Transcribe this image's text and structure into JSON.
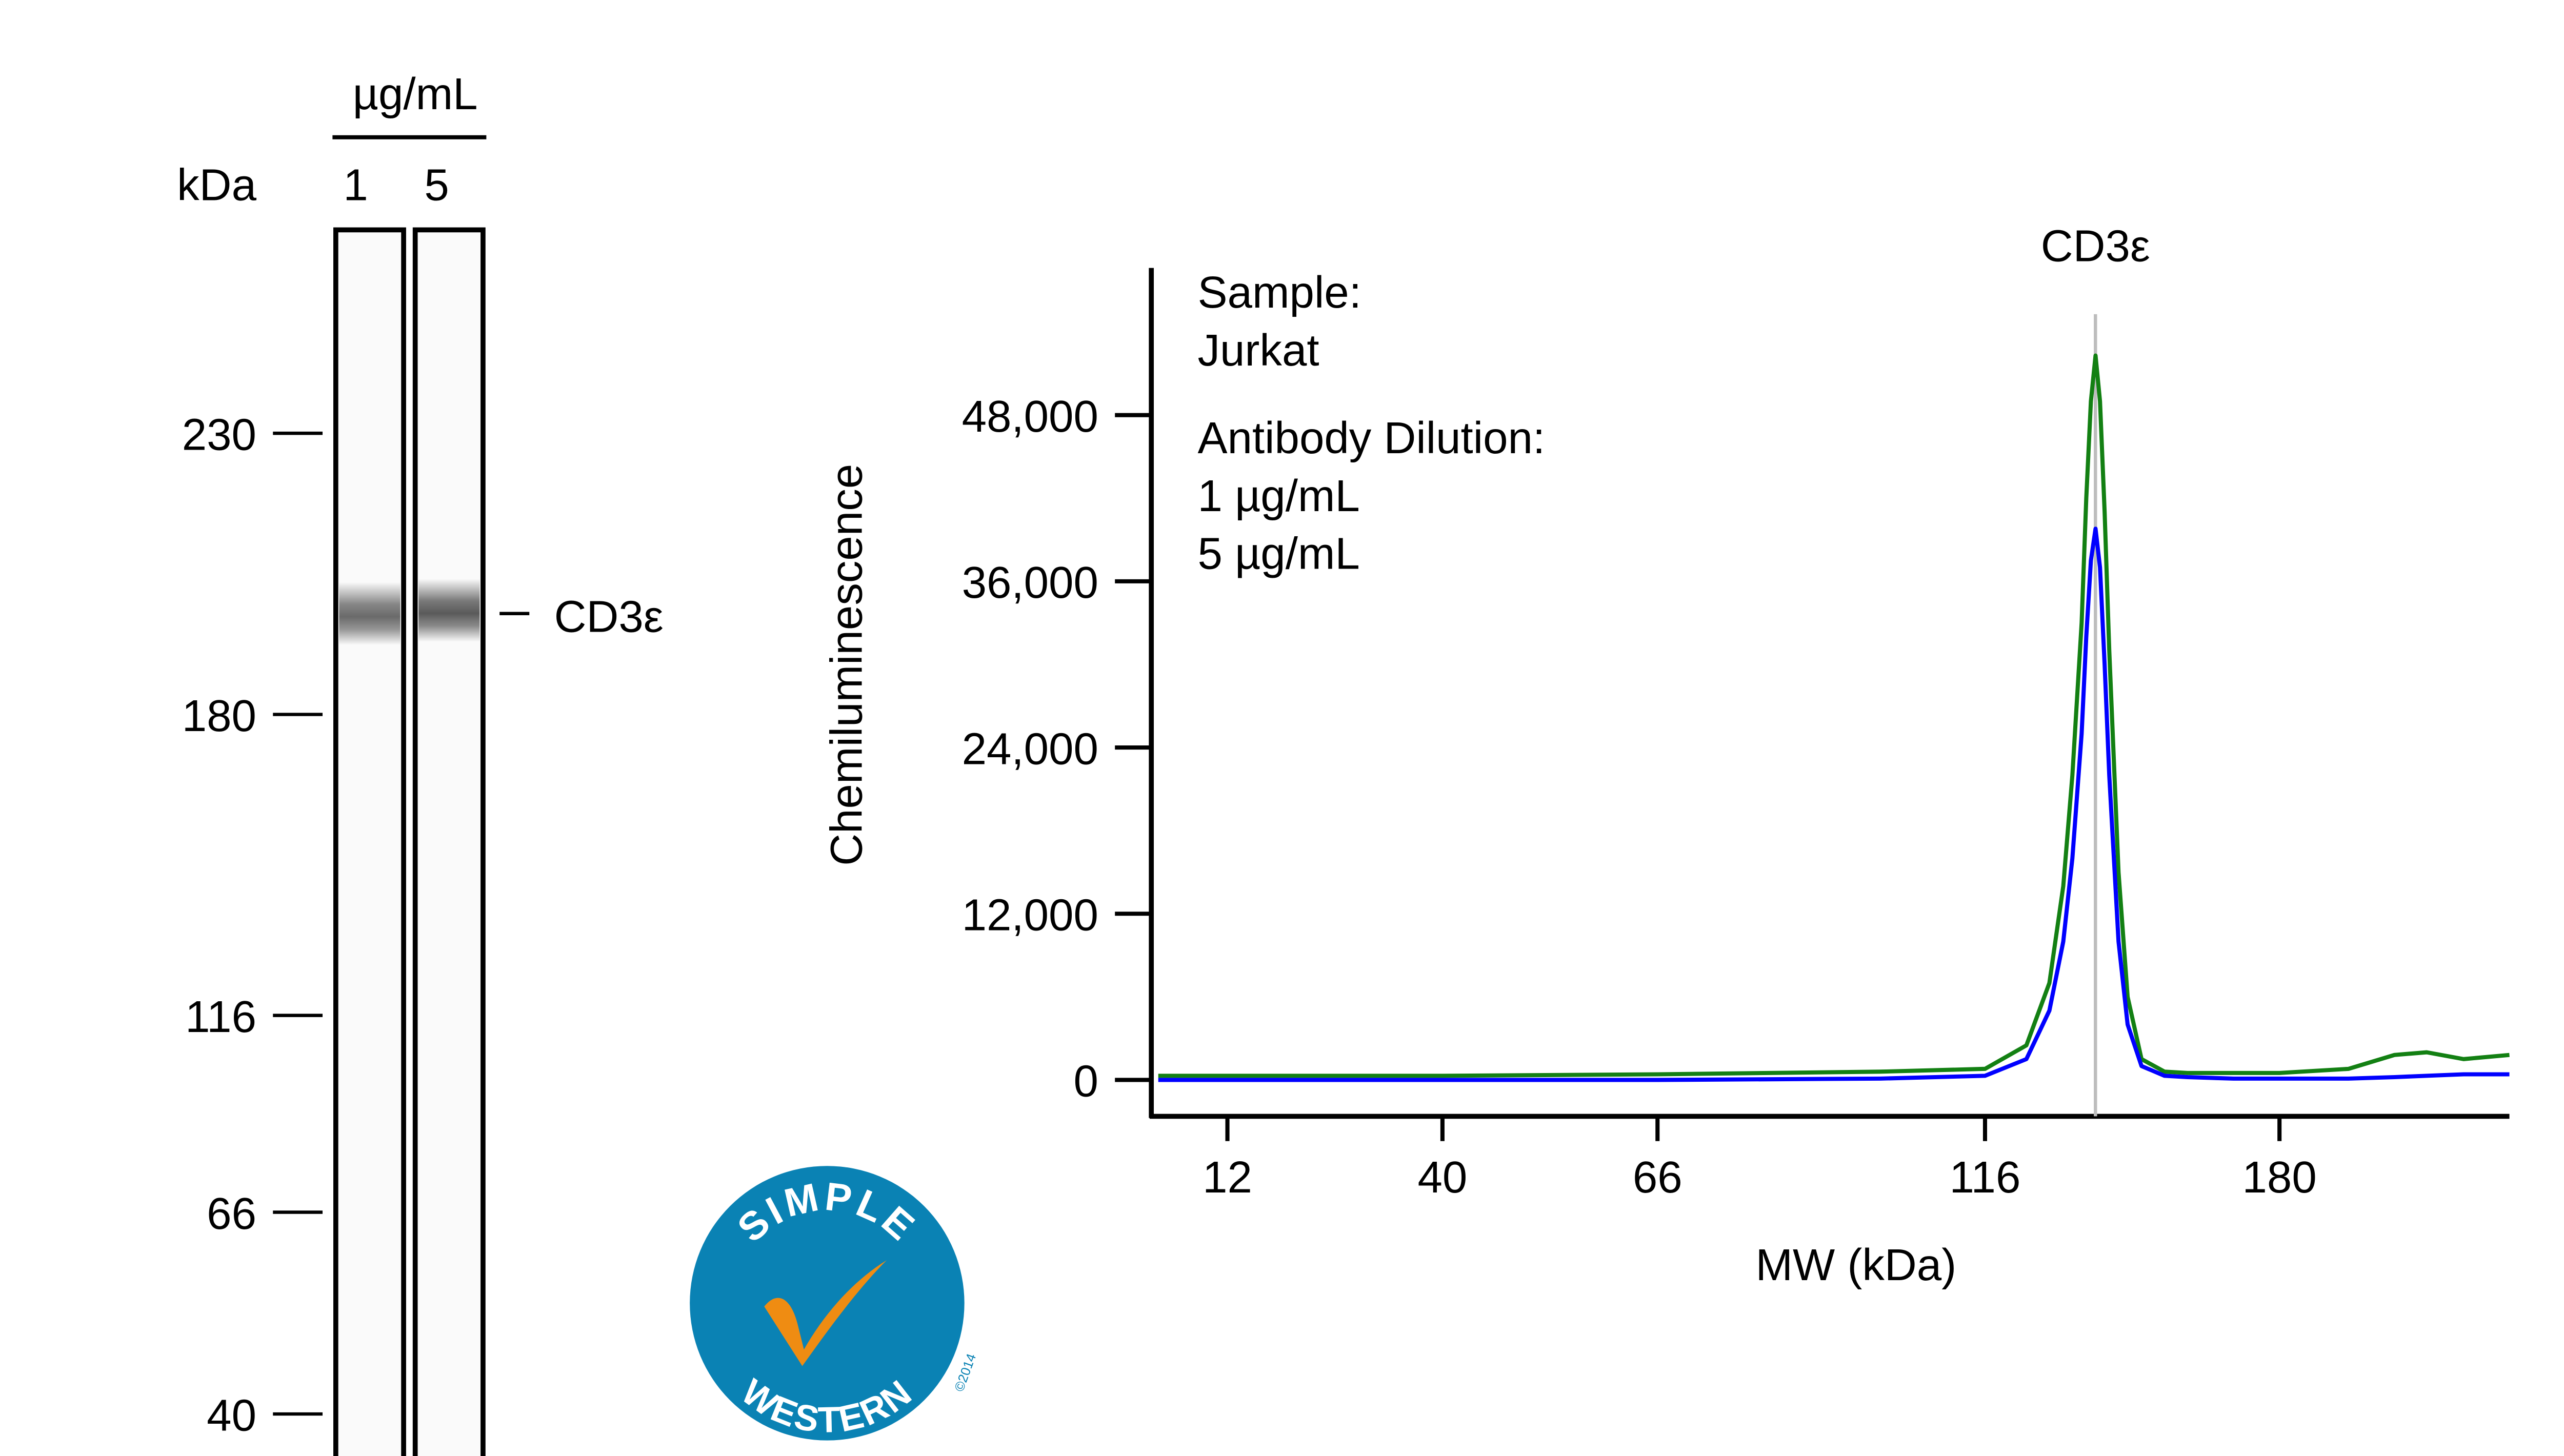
{
  "gel": {
    "unit_label": "µg/mL",
    "kda_label": "kDa",
    "lanes": [
      "1",
      "5"
    ],
    "markers": [
      "230",
      "180",
      "116",
      "66",
      "40"
    ],
    "band_label": "CD3ε"
  },
  "logo": {
    "top_text": "SIMPLE",
    "bottom_text": "WESTERN",
    "copyright": "©2014",
    "colors": {
      "circle": "#0a82b4",
      "check": "#ef8c12"
    }
  },
  "chart_data": {
    "type": "line",
    "title": "",
    "peak_label": "CD3ε",
    "peak_marker_kda": 140,
    "xlabel": "MW (kDa)",
    "ylabel": "Chemiluminescence",
    "x_ticks": [
      "12",
      "40",
      "66",
      "116",
      "180"
    ],
    "y_ticks": [
      "0",
      "12,000",
      "24,000",
      "36,000",
      "48,000"
    ],
    "y_tick_values": [
      0,
      12000,
      24000,
      36000,
      48000
    ],
    "ylim": [
      -2500,
      60000
    ],
    "grid": false,
    "legend": {
      "placement": "top-left",
      "sample_title": "Sample:",
      "sample_name": "Jurkat",
      "dilution_title": "Antibody Dilution:"
    },
    "x": [
      3,
      12,
      40,
      66,
      100,
      116,
      125,
      130,
      133,
      135,
      137,
      138,
      139,
      140,
      141,
      142,
      143,
      145,
      147,
      150,
      155,
      160,
      170,
      180,
      195,
      205,
      212,
      220,
      230
    ],
    "series": [
      {
        "name": "1 µg/mL",
        "color": "#0000ff",
        "values": [
          0,
          0,
          0,
          0,
          100,
          300,
          1500,
          5000,
          10000,
          16000,
          25000,
          32000,
          37500,
          39800,
          37000,
          30000,
          22000,
          10000,
          4000,
          1000,
          300,
          200,
          100,
          100,
          100,
          200,
          300,
          400,
          400
        ]
      },
      {
        "name": "5 µg/mL",
        "color": "#138013",
        "values": [
          300,
          300,
          300,
          400,
          600,
          800,
          2500,
          7000,
          14000,
          22000,
          33000,
          42000,
          49000,
          52300,
          49000,
          41000,
          31000,
          15000,
          6000,
          1500,
          600,
          500,
          500,
          500,
          800,
          1800,
          2000,
          1500,
          1800
        ]
      }
    ]
  }
}
